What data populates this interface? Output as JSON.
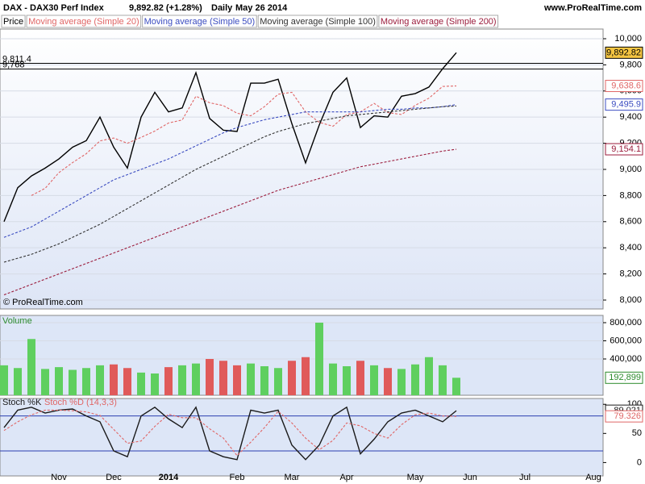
{
  "header": {
    "instrument": "DAX - DAX30 Perf Index",
    "quote": "9,892.82 (+1.28%)",
    "period": "Daily",
    "date": "May 26 2014",
    "site": "www.ProRealTime.com"
  },
  "chart_data": [
    {
      "type": "line",
      "annotation": "© ProRealTime.com",
      "series": [
        {
          "name": "Price",
          "color": "#000000",
          "values": [
            8600,
            8860,
            8950,
            9010,
            9080,
            9170,
            9220,
            9400,
            9170,
            9010,
            9400,
            9590,
            9440,
            9470,
            9740,
            9390,
            9300,
            9290,
            9660,
            9660,
            9690,
            9350,
            9050,
            9340,
            9590,
            9700,
            9320,
            9410,
            9400,
            9560,
            9580,
            9630,
            9770,
            9892.82
          ],
          "value_labels": [
            null,
            null,
            null,
            null,
            null,
            null,
            null,
            null,
            null,
            null,
            null,
            null,
            null,
            null,
            null,
            null,
            null,
            null,
            null,
            null,
            null,
            null,
            null,
            null,
            null,
            null,
            null,
            null,
            null,
            null,
            null,
            null,
            null,
            "9,892.82"
          ]
        },
        {
          "name": "Moving average (Simple 20)",
          "color": "#e06666",
          "dashed": true,
          "values": [
            null,
            null,
            8800,
            8855,
            8975,
            9052,
            9120,
            9218,
            9240,
            9200,
            9245,
            9293,
            9355,
            9378,
            9560,
            9510,
            9488,
            9430,
            9410,
            9480,
            9575,
            9590,
            9440,
            9360,
            9330,
            9420,
            9440,
            9505,
            9435,
            9420,
            9490,
            9545,
            9635,
            9638.6
          ],
          "value_labels": [
            null,
            null,
            null,
            null,
            null,
            null,
            null,
            null,
            null,
            null,
            null,
            null,
            null,
            null,
            null,
            null,
            null,
            null,
            null,
            null,
            null,
            null,
            null,
            null,
            null,
            null,
            null,
            null,
            null,
            null,
            null,
            null,
            null,
            "9,638.6"
          ]
        },
        {
          "name": "Moving average (Simple 50)",
          "color": "#3b4cc0",
          "dashed": true,
          "values": [
            8480,
            8520,
            8560,
            8620,
            8680,
            8740,
            8800,
            8860,
            8920,
            8960,
            9000,
            9040,
            9080,
            9130,
            9180,
            9230,
            9280,
            9320,
            9350,
            9380,
            9400,
            9420,
            9440,
            9440,
            9440,
            9440,
            9440,
            9450,
            9460,
            9460,
            9470,
            9470,
            9480,
            9495.9
          ],
          "value_labels": [
            null,
            null,
            null,
            null,
            null,
            null,
            null,
            null,
            null,
            null,
            null,
            null,
            null,
            null,
            null,
            null,
            null,
            null,
            null,
            null,
            null,
            null,
            null,
            null,
            null,
            null,
            null,
            null,
            null,
            null,
            null,
            null,
            null,
            "9,495.9"
          ]
        },
        {
          "name": "Moving average (Simple 100)",
          "color": "#333333",
          "dashed": true,
          "values": [
            8290,
            8320,
            8350,
            8390,
            8430,
            8480,
            8530,
            8580,
            8640,
            8700,
            8760,
            8820,
            8880,
            8940,
            9000,
            9050,
            9100,
            9150,
            9200,
            9250,
            9290,
            9320,
            9350,
            9370,
            9390,
            9410,
            9420,
            9430,
            9440,
            9450,
            9460,
            9470,
            9480,
            9485
          ]
        },
        {
          "name": "Moving average (Simple 200)",
          "color": "#9b1c3c",
          "dashed": true,
          "values": [
            8040,
            8080,
            8120,
            8160,
            8200,
            8240,
            8280,
            8320,
            8360,
            8400,
            8440,
            8480,
            8520,
            8560,
            8600,
            8640,
            8680,
            8720,
            8760,
            8800,
            8840,
            8870,
            8900,
            8930,
            8960,
            8990,
            9020,
            9040,
            9060,
            9080,
            9100,
            9120,
            9140,
            9154.1
          ],
          "value_labels": [
            null,
            null,
            null,
            null,
            null,
            null,
            null,
            null,
            null,
            null,
            null,
            null,
            null,
            null,
            null,
            null,
            null,
            null,
            null,
            null,
            null,
            null,
            null,
            null,
            null,
            null,
            null,
            null,
            null,
            null,
            null,
            null,
            null,
            "9,154.1"
          ]
        }
      ],
      "levels": [
        {
          "value": 9811.4,
          "label": "9,811.4"
        },
        {
          "value": 9768,
          "label": "9,768"
        }
      ],
      "ylim": [
        7932,
        10074
      ],
      "yticks": [
        {
          "value": 8000,
          "label": "8,000"
        },
        {
          "value": 8200,
          "label": "8,200"
        },
        {
          "value": 8400,
          "label": "8,400"
        },
        {
          "value": 8600,
          "label": "8,600"
        },
        {
          "value": 8800,
          "label": "8,800"
        },
        {
          "value": 9000,
          "label": "9,000"
        },
        {
          "value": 9200,
          "label": "9,200"
        },
        {
          "value": 9400,
          "label": "9,400"
        },
        {
          "value": 9600,
          "label": "9,600"
        },
        {
          "value": 9800,
          "label": "9,800"
        },
        {
          "value": 10000,
          "label": "10,000"
        }
      ],
      "grid": true
    },
    {
      "type": "bar",
      "series": [
        {
          "name": "Volume",
          "up_color": "#5fcf5f",
          "down_color": "#e05a5a",
          "values": [
            330000,
            300000,
            620000,
            290000,
            310000,
            280000,
            300000,
            330000,
            340000,
            300000,
            250000,
            240000,
            310000,
            330000,
            350000,
            400000,
            380000,
            330000,
            350000,
            320000,
            300000,
            380000,
            420000,
            800000,
            350000,
            320000,
            380000,
            330000,
            300000,
            290000,
            340000,
            420000,
            330000,
            192899
          ],
          "value_labels": [
            null,
            null,
            null,
            null,
            null,
            null,
            null,
            null,
            null,
            null,
            null,
            null,
            null,
            null,
            null,
            null,
            null,
            null,
            null,
            null,
            null,
            null,
            null,
            null,
            null,
            null,
            null,
            null,
            null,
            null,
            null,
            null,
            null,
            "192,899"
          ]
        }
      ],
      "ylim": [
        0,
        880000
      ],
      "yticks": [
        {
          "value": 400000,
          "label": "400,000"
        },
        {
          "value": 600000,
          "label": "600,000"
        },
        {
          "value": 800000,
          "label": "800,000"
        }
      ],
      "grid": true
    },
    {
      "type": "line",
      "categories": [
        null,
        null,
        null,
        null,
        "Nov",
        null,
        null,
        null,
        "Dec",
        null,
        null,
        null,
        "2014",
        null,
        null,
        null,
        null,
        "Feb",
        null,
        null,
        null,
        "Mar",
        null,
        null,
        null,
        "Apr",
        null,
        null,
        null,
        null,
        "May",
        null,
        null,
        null,
        "Jun",
        null,
        null,
        null,
        "Jul",
        null,
        null,
        null,
        null,
        "Aug"
      ],
      "series": [
        {
          "name": "Stoch %K",
          "color": "#1a1a1a",
          "values": [
            60,
            90,
            95,
            85,
            90,
            92,
            80,
            70,
            20,
            10,
            80,
            95,
            75,
            60,
            95,
            20,
            10,
            5,
            90,
            85,
            90,
            30,
            5,
            30,
            80,
            95,
            15,
            40,
            70,
            85,
            90,
            80,
            70,
            89.021,
            null,
            null,
            null,
            null,
            null,
            null,
            null,
            null,
            null,
            null
          ],
          "value_labels": [
            null,
            null,
            null,
            null,
            null,
            null,
            null,
            null,
            null,
            null,
            null,
            null,
            null,
            null,
            null,
            null,
            null,
            null,
            null,
            null,
            null,
            null,
            null,
            null,
            null,
            null,
            null,
            null,
            null,
            null,
            null,
            null,
            null,
            "89.021",
            null,
            null,
            null,
            null,
            null,
            null,
            null,
            null,
            null,
            null
          ]
        },
        {
          "name": "Stoch %D (14,3,3)",
          "color": "#e06666",
          "dashed": true,
          "values": [
            55,
            70,
            82,
            90,
            90,
            89,
            87,
            81,
            57,
            33,
            37,
            62,
            83,
            77,
            77,
            58,
            42,
            12,
            35,
            60,
            88,
            68,
            42,
            22,
            38,
            68,
            63,
            50,
            42,
            65,
            82,
            85,
            80,
            79.326,
            null,
            null,
            null,
            null,
            null,
            null,
            null,
            null,
            null,
            null
          ],
          "value_labels": [
            null,
            null,
            null,
            null,
            null,
            null,
            null,
            null,
            null,
            null,
            null,
            null,
            null,
            null,
            null,
            null,
            null,
            null,
            null,
            null,
            null,
            null,
            null,
            null,
            null,
            null,
            null,
            null,
            null,
            null,
            null,
            null,
            null,
            "79.326",
            null,
            null,
            null,
            null,
            null,
            null,
            null,
            null,
            null,
            null
          ]
        }
      ],
      "levels": [
        80,
        20
      ],
      "ylim": [
        -23,
        110
      ],
      "yticks": [
        0,
        50,
        100
      ],
      "grid": false
    }
  ]
}
